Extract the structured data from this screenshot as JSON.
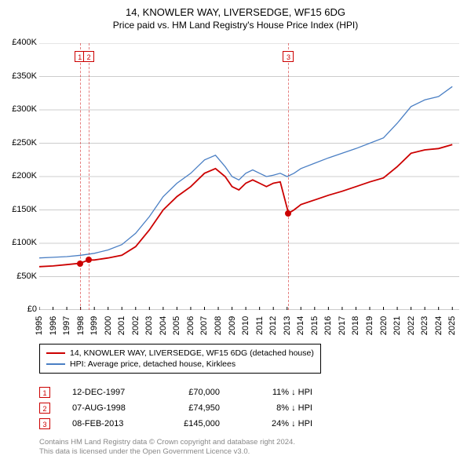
{
  "title": "14, KNOWLER WAY, LIVERSEDGE, WF15 6DG",
  "subtitle": "Price paid vs. HM Land Registry's House Price Index (HPI)",
  "chart": {
    "type": "line",
    "x_range": [
      1995,
      2025.5
    ],
    "y_range": [
      0,
      400000
    ],
    "y_ticks": [
      0,
      50000,
      100000,
      150000,
      200000,
      250000,
      300000,
      350000,
      400000
    ],
    "y_tick_labels": [
      "£0",
      "£50K",
      "£100K",
      "£150K",
      "£200K",
      "£250K",
      "£300K",
      "£350K",
      "£400K"
    ],
    "x_ticks": [
      1995,
      1996,
      1997,
      1998,
      1999,
      2000,
      2001,
      2002,
      2003,
      2004,
      2005,
      2006,
      2007,
      2008,
      2009,
      2010,
      2011,
      2012,
      2013,
      2014,
      2015,
      2016,
      2017,
      2018,
      2019,
      2020,
      2021,
      2022,
      2023,
      2024,
      2025
    ],
    "grid_color": "#999999",
    "background_color": "#ffffff",
    "series": [
      {
        "name": "14, KNOWLER WAY, LIVERSEDGE, WF15 6DG (detached house)",
        "color": "#cc0000",
        "width": 1.8,
        "data": [
          [
            1995,
            65000
          ],
          [
            1996,
            66000
          ],
          [
            1997,
            68000
          ],
          [
            1997.95,
            70000
          ],
          [
            1998.6,
            74950
          ],
          [
            1999,
            75000
          ],
          [
            2000,
            78000
          ],
          [
            2001,
            82000
          ],
          [
            2002,
            95000
          ],
          [
            2003,
            120000
          ],
          [
            2004,
            150000
          ],
          [
            2005,
            170000
          ],
          [
            2006,
            185000
          ],
          [
            2007,
            205000
          ],
          [
            2007.8,
            212000
          ],
          [
            2008.5,
            200000
          ],
          [
            2009,
            185000
          ],
          [
            2009.5,
            180000
          ],
          [
            2010,
            190000
          ],
          [
            2010.5,
            195000
          ],
          [
            2011,
            190000
          ],
          [
            2011.5,
            185000
          ],
          [
            2012,
            190000
          ],
          [
            2012.5,
            192000
          ],
          [
            2013.1,
            145000
          ],
          [
            2013.5,
            150000
          ],
          [
            2014,
            158000
          ],
          [
            2015,
            165000
          ],
          [
            2016,
            172000
          ],
          [
            2017,
            178000
          ],
          [
            2018,
            185000
          ],
          [
            2019,
            192000
          ],
          [
            2020,
            198000
          ],
          [
            2021,
            215000
          ],
          [
            2022,
            235000
          ],
          [
            2023,
            240000
          ],
          [
            2024,
            242000
          ],
          [
            2025,
            248000
          ]
        ]
      },
      {
        "name": "HPI: Average price, detached house, Kirklees",
        "color": "#4a7fc4",
        "width": 1.3,
        "data": [
          [
            1995,
            78000
          ],
          [
            1996,
            79000
          ],
          [
            1997,
            80000
          ],
          [
            1998,
            82000
          ],
          [
            1999,
            85000
          ],
          [
            2000,
            90000
          ],
          [
            2001,
            98000
          ],
          [
            2002,
            115000
          ],
          [
            2003,
            140000
          ],
          [
            2004,
            170000
          ],
          [
            2005,
            190000
          ],
          [
            2006,
            205000
          ],
          [
            2007,
            225000
          ],
          [
            2007.8,
            232000
          ],
          [
            2008.5,
            215000
          ],
          [
            2009,
            200000
          ],
          [
            2009.5,
            195000
          ],
          [
            2010,
            205000
          ],
          [
            2010.5,
            210000
          ],
          [
            2011,
            205000
          ],
          [
            2011.5,
            200000
          ],
          [
            2012,
            202000
          ],
          [
            2012.5,
            205000
          ],
          [
            2013,
            200000
          ],
          [
            2013.5,
            205000
          ],
          [
            2014,
            212000
          ],
          [
            2015,
            220000
          ],
          [
            2016,
            228000
          ],
          [
            2017,
            235000
          ],
          [
            2018,
            242000
          ],
          [
            2019,
            250000
          ],
          [
            2020,
            258000
          ],
          [
            2021,
            280000
          ],
          [
            2022,
            305000
          ],
          [
            2023,
            315000
          ],
          [
            2024,
            320000
          ],
          [
            2025,
            335000
          ]
        ]
      }
    ],
    "markers": [
      {
        "n": "1",
        "x": 1997.95,
        "y": 70000
      },
      {
        "n": "2",
        "x": 1998.6,
        "y": 74950
      },
      {
        "n": "3",
        "x": 2013.1,
        "y": 145000
      }
    ]
  },
  "legend": {
    "items": [
      {
        "label": "14, KNOWLER WAY, LIVERSEDGE, WF15 6DG (detached house)",
        "color": "#cc0000"
      },
      {
        "label": "HPI: Average price, detached house, Kirklees",
        "color": "#4a7fc4"
      }
    ]
  },
  "sales": [
    {
      "n": "1",
      "date": "12-DEC-1997",
      "price": "£70,000",
      "pct": "11% ↓ HPI"
    },
    {
      "n": "2",
      "date": "07-AUG-1998",
      "price": "£74,950",
      "pct": "8% ↓ HPI"
    },
    {
      "n": "3",
      "date": "08-FEB-2013",
      "price": "£145,000",
      "pct": "24% ↓ HPI"
    }
  ],
  "footer_line1": "Contains HM Land Registry data © Crown copyright and database right 2024.",
  "footer_line2": "This data is licensed under the Open Government Licence v3.0."
}
